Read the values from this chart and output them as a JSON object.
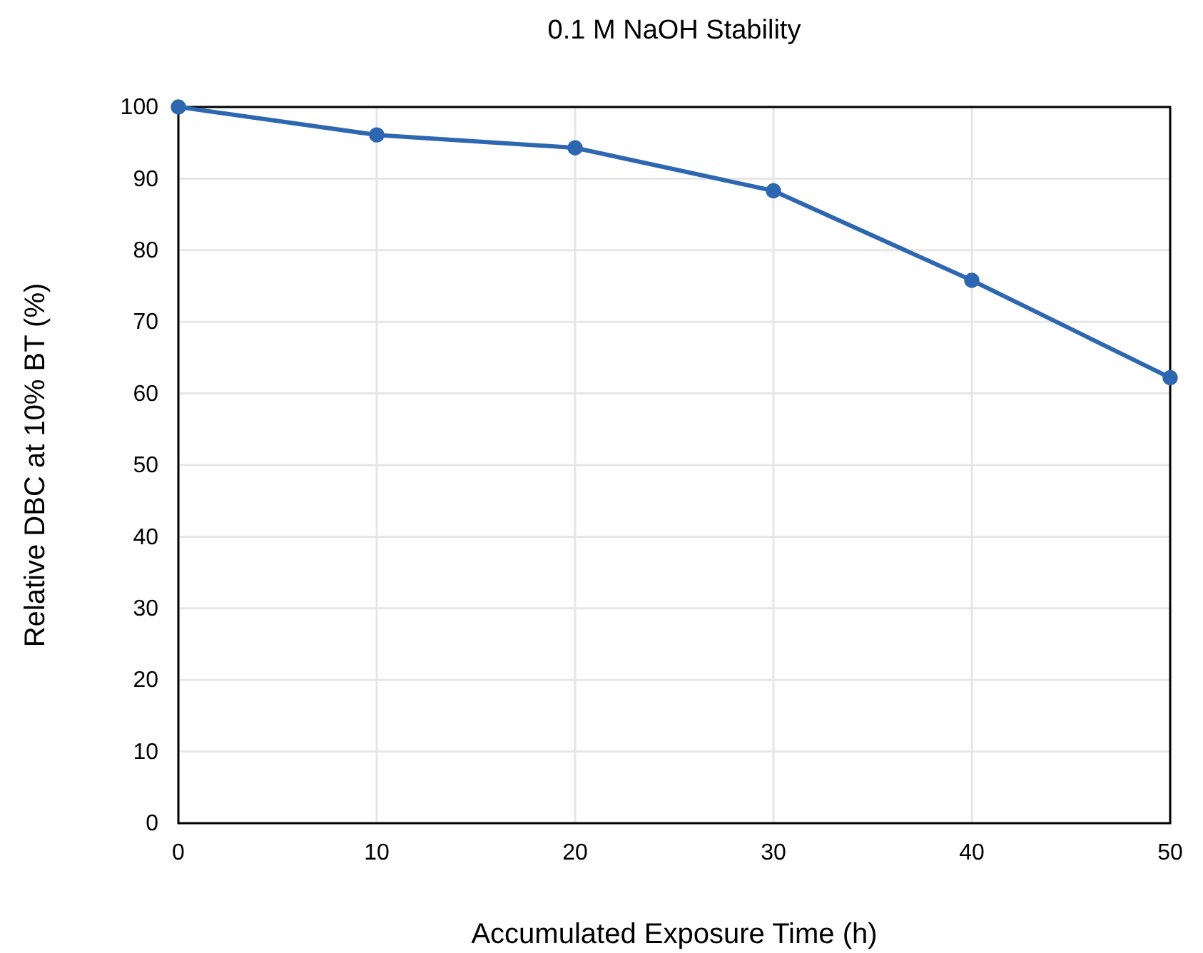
{
  "chart_data": {
    "type": "line",
    "title": "0.1 M NaOH Stability",
    "xlabel": "Accumulated Exposure Time (h)",
    "ylabel": "Relative DBC at 10% BT (%)",
    "x": [
      0,
      10,
      20,
      30,
      40,
      50
    ],
    "series": [
      {
        "color": "#2e67b1",
        "values": [
          100,
          96.1,
          94.3,
          88.3,
          75.8,
          62.2
        ]
      }
    ],
    "xlim": [
      0,
      50
    ],
    "xticks": [
      0,
      10,
      20,
      30,
      40,
      50
    ],
    "ylim": [
      0,
      100
    ],
    "yticks": [
      0,
      10,
      20,
      30,
      40,
      50,
      60,
      70,
      80,
      90,
      100
    ],
    "grid": true,
    "marker": "circle",
    "line_style": "solid"
  }
}
